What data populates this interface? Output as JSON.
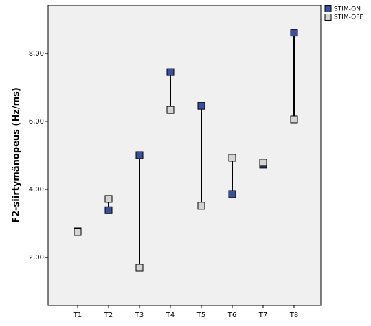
{
  "chart_data": {
    "type": "dot",
    "y_label": "F2-siirtymänopeus (Hz/ms)",
    "categories": [
      "T1",
      "T2",
      "T3",
      "T4",
      "T5",
      "T6",
      "T7",
      "T8"
    ],
    "series": [
      {
        "name": "STIM-ON",
        "color": "#3a4fa0",
        "values": [
          2.77,
          3.39,
          5.01,
          7.45,
          6.46,
          3.86,
          4.73,
          8.61
        ]
      },
      {
        "name": "STIM-OFF",
        "color": "#d4d4d4",
        "values": [
          2.75,
          3.72,
          1.7,
          6.34,
          3.52,
          4.93,
          4.79,
          6.06
        ]
      }
    ],
    "ylim": [
      0.59,
      9.41
    ],
    "yticks": [
      {
        "value": 2,
        "label": "2,00"
      },
      {
        "value": 4,
        "label": "4,00"
      },
      {
        "value": 6,
        "label": "6,00"
      },
      {
        "value": 8,
        "label": "8,00"
      }
    ],
    "drop_lines": true,
    "legend": "top-right"
  }
}
